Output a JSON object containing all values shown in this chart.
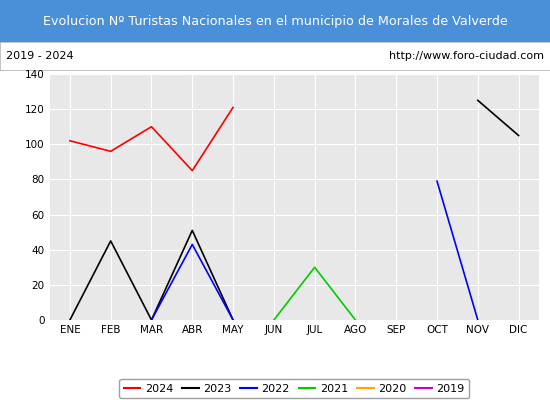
{
  "title": "Evolucion Nº Turistas Nacionales en el municipio de Morales de Valverde",
  "subtitle_left": "2019 - 2024",
  "subtitle_right": "http://www.foro-ciudad.com",
  "title_bg_color": "#4a90d9",
  "title_text_color": "#ffffff",
  "months": [
    "ENE",
    "FEB",
    "MAR",
    "ABR",
    "MAY",
    "JUN",
    "JUL",
    "AGO",
    "SEP",
    "OCT",
    "NOV",
    "DIC"
  ],
  "ylim": [
    0,
    140
  ],
  "yticks": [
    0,
    20,
    40,
    60,
    80,
    100,
    120,
    140
  ],
  "series": {
    "2024": {
      "color": "#ff0000",
      "values": [
        102,
        96,
        110,
        85,
        121,
        null,
        null,
        null,
        null,
        null,
        null,
        null
      ]
    },
    "2023": {
      "color": "#000000",
      "values": [
        0,
        45,
        0,
        51,
        0,
        null,
        null,
        null,
        null,
        null,
        125,
        105
      ]
    },
    "2022": {
      "color": "#0000ff",
      "values": [
        null,
        null,
        0,
        43,
        0,
        null,
        null,
        null,
        null,
        79,
        0,
        null
      ]
    },
    "2021": {
      "color": "#00cc00",
      "values": [
        null,
        null,
        null,
        null,
        null,
        0,
        30,
        0,
        null,
        null,
        null,
        null
      ]
    },
    "2020": {
      "color": "#ffa500",
      "values": [
        null,
        null,
        null,
        null,
        null,
        null,
        null,
        null,
        null,
        null,
        null,
        null
      ]
    },
    "2019": {
      "color": "#cc00cc",
      "values": [
        null,
        null,
        null,
        null,
        null,
        null,
        null,
        null,
        null,
        null,
        null,
        null
      ]
    }
  },
  "legend_order": [
    "2024",
    "2023",
    "2022",
    "2021",
    "2020",
    "2019"
  ]
}
